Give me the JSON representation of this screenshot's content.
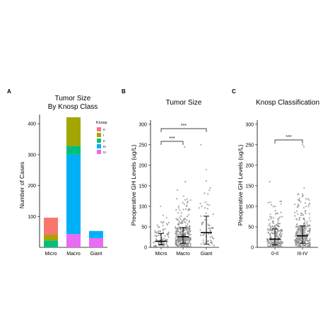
{
  "chart_data": [
    {
      "panel": "A",
      "type": "bar",
      "stacked": true,
      "title": [
        "Tumor Size",
        "By Knosp Class"
      ],
      "xlabel": "",
      "ylabel": "Number of Cases",
      "ylim": [
        0,
        430
      ],
      "yticks": [
        100,
        200,
        300,
        400
      ],
      "categories": [
        "Micro",
        "Macro",
        "Giant"
      ],
      "legend": {
        "title": "Knosp",
        "placement": "top-right"
      },
      "series": [
        {
          "name": "IV",
          "color": "#e76bf3",
          "values": [
            0,
            43,
            30
          ]
        },
        {
          "name": "III",
          "color": "#00b0f6",
          "values": [
            0,
            257,
            23
          ]
        },
        {
          "name": "II",
          "color": "#00bf7d",
          "values": [
            22,
            28,
            0
          ]
        },
        {
          "name": "I",
          "color": "#a3a500",
          "values": [
            18,
            93,
            0
          ]
        },
        {
          "name": "0",
          "color": "#f8766d",
          "values": [
            56,
            0,
            0
          ]
        }
      ]
    },
    {
      "panel": "B",
      "type": "scatter",
      "title": "Tumor Size",
      "xlabel": "",
      "ylabel": "Preoperative GH Levels (ug/L)",
      "ylim": [
        0,
        310
      ],
      "yticks": [
        0,
        50,
        100,
        150,
        200,
        250,
        300
      ],
      "categories": [
        "Micro",
        "Macro",
        "Giant"
      ],
      "summary": [
        {
          "category": "Micro",
          "median": 15,
          "q1": 6,
          "q3": 34,
          "n_points": 90,
          "outliers": [
            100,
            78,
            62
          ]
        },
        {
          "category": "Macro",
          "median": 26,
          "q1": 10,
          "q3": 48,
          "n_points": 330,
          "outliers": [
            245,
            160,
            140,
            125,
            112,
            100
          ]
        },
        {
          "category": "Giant",
          "median": 36,
          "q1": 8,
          "q3": 76,
          "n_points": 55,
          "outliers": [
            250,
            145,
            130,
            110
          ]
        }
      ],
      "significance": [
        {
          "from": "Micro",
          "to": "Macro",
          "label": "***"
        },
        {
          "from": "Micro",
          "to": "Giant",
          "label": "***"
        }
      ]
    },
    {
      "panel": "C",
      "type": "scatter",
      "title": "Knosp Classification",
      "xlabel": "",
      "ylabel": "Preoperative GH Levels (ug/L)",
      "ylim": [
        0,
        310
      ],
      "yticks": [
        0,
        50,
        100,
        150,
        200,
        250,
        300
      ],
      "categories": [
        "0-II",
        "III-IV"
      ],
      "summary": [
        {
          "category": "0-II",
          "median": 20,
          "q1": 6,
          "q3": 45,
          "n_points": 210,
          "outliers": [
            160,
            110,
            100
          ]
        },
        {
          "category": "III-IV",
          "median": 28,
          "q1": 10,
          "q3": 52,
          "n_points": 290,
          "outliers": [
            250,
            245,
            145,
            130,
            118,
            108
          ]
        }
      ],
      "significance": [
        {
          "from": "0-II",
          "to": "III-IV",
          "label": "***"
        }
      ]
    }
  ],
  "colors": {
    "axis": "#000000",
    "points": "#8c8c8c",
    "summary": "#000000"
  }
}
